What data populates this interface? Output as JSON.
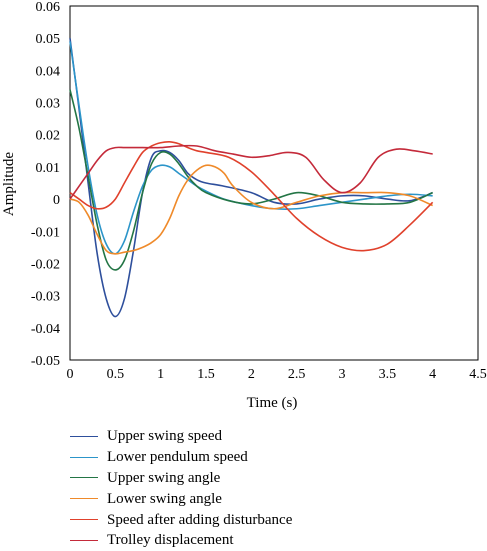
{
  "chart_data": {
    "type": "line",
    "xlabel": "Time (s)",
    "ylabel": "Amplitude",
    "xlim": [
      0,
      4.5
    ],
    "ylim": [
      -0.05,
      0.06
    ],
    "xticks": [
      0,
      0.5,
      1,
      1.5,
      2,
      2.5,
      3,
      3.5,
      4,
      4.5
    ],
    "yticks": [
      -0.05,
      -0.04,
      -0.03,
      -0.02,
      -0.01,
      0,
      0.01,
      0.02,
      0.03,
      0.04,
      0.05,
      0.06
    ],
    "xtick_labels": [
      "0",
      "0.5",
      "1",
      "1.5",
      "2",
      "2.5",
      "3",
      "3.5",
      "4",
      "4.5"
    ],
    "ytick_labels": [
      "-0.05",
      "-0.04",
      "-0.03",
      "-0.02",
      "-0.01",
      "0",
      "0.01",
      "0.02",
      "0.03",
      "0.04",
      "0.05",
      "0.06"
    ],
    "grid": false,
    "legend_position": "bottom",
    "series": [
      {
        "name": "Upper swing speed",
        "color": "#2e4f9c",
        "x": [
          0,
          0.1,
          0.2,
          0.3,
          0.4,
          0.5,
          0.6,
          0.7,
          0.8,
          0.9,
          1.0,
          1.1,
          1.2,
          1.3,
          1.4,
          1.5,
          1.7,
          2.0,
          2.25,
          2.5,
          2.75,
          3.0,
          3.25,
          3.5,
          3.75,
          4.0
        ],
        "y": [
          0.05,
          0.028,
          0.005,
          -0.017,
          -0.031,
          -0.0365,
          -0.031,
          -0.016,
          0.002,
          0.013,
          0.015,
          0.0145,
          0.012,
          0.008,
          0.006,
          0.005,
          0.004,
          0.002,
          -0.001,
          -0.0015,
          0.0,
          0.001,
          0.001,
          0.0,
          -0.0005,
          0.002
        ]
      },
      {
        "name": "Lower pendulum speed",
        "color": "#2c95c9",
        "x": [
          0,
          0.1,
          0.2,
          0.3,
          0.4,
          0.5,
          0.6,
          0.7,
          0.8,
          0.9,
          1.0,
          1.1,
          1.2,
          1.3,
          1.4,
          1.5,
          1.7,
          2.0,
          2.25,
          2.5,
          2.75,
          3.0,
          3.25,
          3.5,
          3.75,
          4.0
        ],
        "y": [
          0.049,
          0.029,
          0.01,
          -0.005,
          -0.014,
          -0.017,
          -0.013,
          -0.004,
          0.004,
          0.009,
          0.0105,
          0.01,
          0.008,
          0.006,
          0.004,
          0.0025,
          0.0,
          -0.002,
          -0.003,
          -0.003,
          -0.002,
          -0.001,
          0.0,
          0.001,
          0.0015,
          0.001
        ]
      },
      {
        "name": "Upper swing angle",
        "color": "#237545",
        "x": [
          0,
          0.1,
          0.2,
          0.3,
          0.4,
          0.5,
          0.6,
          0.7,
          0.8,
          0.9,
          1.0,
          1.1,
          1.2,
          1.3,
          1.4,
          1.5,
          1.75,
          2.0,
          2.25,
          2.5,
          2.75,
          3.0,
          3.25,
          3.5,
          3.75,
          4.0
        ],
        "y": [
          0.034,
          0.022,
          0.007,
          -0.008,
          -0.019,
          -0.022,
          -0.019,
          -0.01,
          0.002,
          0.011,
          0.0145,
          0.014,
          0.011,
          0.007,
          0.004,
          0.002,
          -0.0005,
          -0.0015,
          0.0,
          0.002,
          0.001,
          -0.001,
          -0.0015,
          -0.0015,
          -0.001,
          0.002
        ]
      },
      {
        "name": "Lower swing angle",
        "color": "#ef8a2a",
        "x": [
          0,
          0.1,
          0.2,
          0.3,
          0.4,
          0.5,
          0.6,
          0.7,
          0.8,
          0.9,
          1.0,
          1.1,
          1.2,
          1.3,
          1.4,
          1.5,
          1.6,
          1.7,
          1.8,
          2.0,
          2.25,
          2.5,
          2.75,
          3.0,
          3.25,
          3.5,
          3.75,
          4.0
        ],
        "y": [
          0.0,
          -0.001,
          -0.005,
          -0.011,
          -0.016,
          -0.017,
          -0.0165,
          -0.016,
          -0.015,
          -0.0135,
          -0.011,
          -0.006,
          0.001,
          0.006,
          0.009,
          0.0105,
          0.01,
          0.008,
          0.004,
          -0.001,
          -0.003,
          -0.001,
          0.001,
          0.002,
          0.002,
          0.002,
          0.001,
          -0.002
        ]
      },
      {
        "name": "Speed after adding disturbance",
        "color": "#e0412c",
        "x": [
          0,
          0.1,
          0.2,
          0.3,
          0.4,
          0.5,
          0.6,
          0.7,
          0.8,
          0.9,
          1.0,
          1.1,
          1.2,
          1.3,
          1.4,
          1.5,
          1.75,
          2.0,
          2.25,
          2.5,
          2.75,
          3.0,
          3.25,
          3.5,
          3.75,
          4.0
        ],
        "y": [
          0.002,
          0.0,
          -0.002,
          -0.003,
          -0.0025,
          0.0,
          0.005,
          0.01,
          0.0145,
          0.0165,
          0.0175,
          0.0178,
          0.0172,
          0.016,
          0.015,
          0.0145,
          0.013,
          0.0085,
          0.0015,
          -0.006,
          -0.0115,
          -0.015,
          -0.016,
          -0.014,
          -0.008,
          -0.001
        ]
      },
      {
        "name": "Trolley displacement",
        "color": "#c42a3a",
        "x": [
          0,
          0.1,
          0.2,
          0.3,
          0.4,
          0.5,
          0.6,
          0.7,
          0.8,
          1.0,
          1.2,
          1.4,
          1.6,
          1.8,
          2.0,
          2.2,
          2.4,
          2.6,
          2.8,
          3.0,
          3.2,
          3.4,
          3.6,
          3.8,
          4.0
        ],
        "y": [
          0.0,
          0.004,
          0.008,
          0.012,
          0.015,
          0.016,
          0.016,
          0.016,
          0.016,
          0.016,
          0.0165,
          0.0165,
          0.015,
          0.014,
          0.013,
          0.0135,
          0.0145,
          0.013,
          0.006,
          0.002,
          0.005,
          0.013,
          0.0155,
          0.015,
          0.014
        ]
      }
    ]
  }
}
